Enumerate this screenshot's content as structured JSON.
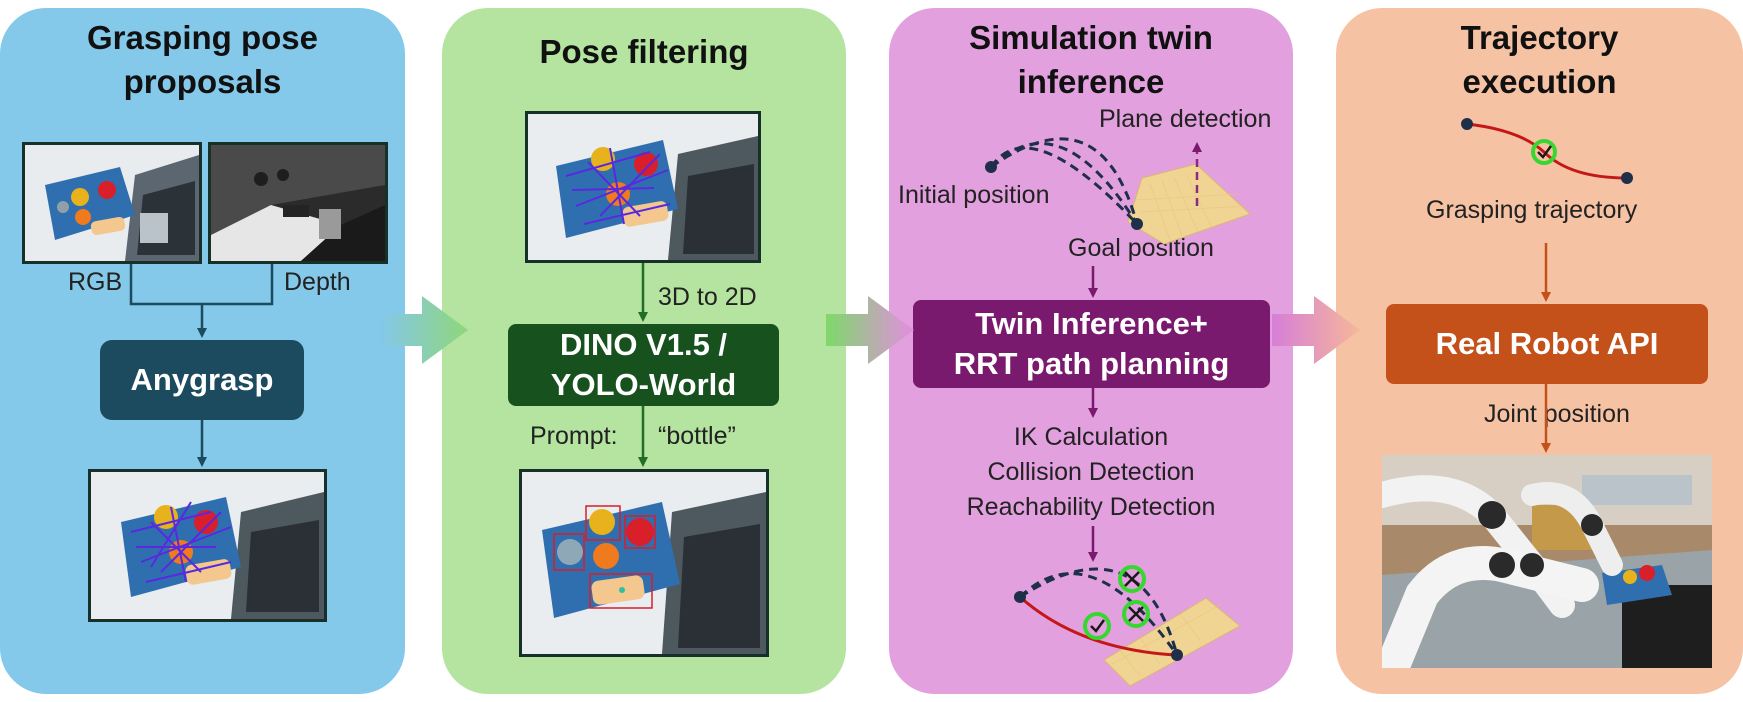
{
  "panels": {
    "grasp": {
      "title_line1": "Grasping pose",
      "title_line2": "proposals",
      "rgb_label": "RGB",
      "depth_label": "Depth",
      "anygrasp_label": "Anygrasp"
    },
    "filter": {
      "title": "Pose filtering",
      "projection_label": "3D to 2D",
      "detector_line1": "DINO V1.5 /",
      "detector_line2": "YOLO-World",
      "prompt_label": "Prompt:",
      "prompt_value": "“bottle”"
    },
    "sim": {
      "title_line1": "Simulation twin",
      "title_line2": "inference",
      "plane_detection": "Plane detection",
      "initial_position": "Initial position",
      "goal_position": "Goal position",
      "twin_line1": "Twin Inference+",
      "twin_line2": "RRT path planning",
      "checks": [
        "IK Calculation",
        "Collision Detection",
        "Reachability Detection"
      ]
    },
    "exec": {
      "title_line1": "Trajectory",
      "title_line2": "execution",
      "grasping_trajectory": "Grasping trajectory",
      "robot_api": "Real Robot API",
      "joint_position": "Joint position"
    }
  },
  "colors": {
    "grasp_panel": "#84c8ea",
    "filter_panel": "#b4e4a0",
    "sim_panel": "#e2a0de",
    "exec_panel": "#f6c2a4",
    "anygrasp_box": "#1c4a5e",
    "detector_box": "#17521e",
    "twin_box": "#7a1a6e",
    "robot_box": "#c4501a",
    "trajectory_red": "#c41818",
    "check_green": "#36d830"
  },
  "icons": {
    "anchor": "dot-icon",
    "collision": "x-circle-icon",
    "ok": "checkmark-circle-icon"
  }
}
